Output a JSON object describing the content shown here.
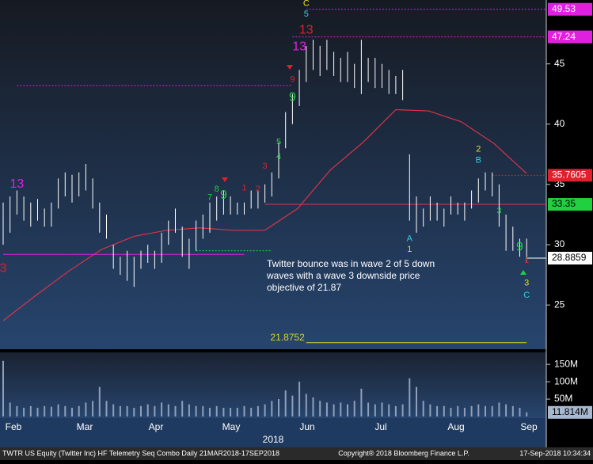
{
  "chart_data": [
    {
      "type": "hlbar",
      "high": [
        33.5,
        34.0,
        34.5,
        34.0,
        33.5,
        33.8,
        33.0,
        33.5,
        35.5,
        36.0,
        35.8,
        36.0,
        36.7,
        35.5,
        33.5,
        32.5,
        30.0,
        29.0,
        29.5,
        29.0,
        29.5,
        30.0,
        29.5,
        31.0,
        32.0,
        33.0,
        31.5,
        30.5,
        32.0,
        32.5,
        33.5,
        34.0,
        34.5,
        34.0,
        33.5,
        33.5,
        34.5,
        34.5,
        35.0,
        36.0,
        38.5,
        41.0,
        42.5,
        44.5,
        46.5,
        47.0,
        46.5,
        47.0,
        46.0,
        45.5,
        46.0,
        45.0,
        47.0,
        45.5,
        45.5,
        45.0,
        44.5,
        44.0,
        44.5,
        37.5,
        34.0,
        33.0,
        34.0,
        33.5,
        33.0,
        34.0,
        33.5,
        33.5,
        34.5,
        35.5,
        36.0,
        36.0,
        35.0,
        32.5,
        31.5,
        30.5,
        30.5
      ],
      "low": [
        30.0,
        31.0,
        32.5,
        32.0,
        31.5,
        32.0,
        31.5,
        31.5,
        33.0,
        34.0,
        33.5,
        34.0,
        34.5,
        33.0,
        31.0,
        30.5,
        28.0,
        27.5,
        27.0,
        26.5,
        28.0,
        28.5,
        28.0,
        28.5,
        30.0,
        31.0,
        29.0,
        28.0,
        29.5,
        30.5,
        31.0,
        32.0,
        32.5,
        32.5,
        32.5,
        32.5,
        33.0,
        33.0,
        33.5,
        34.0,
        35.5,
        38.0,
        40.0,
        41.5,
        43.5,
        44.5,
        44.0,
        44.5,
        44.0,
        43.5,
        43.5,
        43.0,
        42.5,
        43.5,
        43.0,
        43.0,
        42.5,
        42.5,
        42.0,
        32.0,
        31.0,
        31.5,
        32.0,
        32.0,
        31.5,
        32.5,
        32.5,
        32.0,
        33.0,
        33.5,
        34.5,
        34.0,
        31.5,
        29.5,
        29.5,
        29.0,
        28.5
      ],
      "color": "#ffffff",
      "ma": {
        "color": "#d8344a",
        "values": [
          23.7,
          25.8,
          27.8,
          29.6,
          30.7,
          31.2,
          31.4,
          31.2,
          31.2,
          33.0,
          36.2,
          38.5,
          41.2,
          41.1,
          40.2,
          38.4,
          35.9
        ]
      },
      "ylim": [
        21.4,
        50.3
      ],
      "yticks": [
        25,
        30,
        35,
        40,
        45
      ],
      "levels": [
        {
          "value": 49.53,
          "color": "#e020e0",
          "from": 44,
          "style": "dotted"
        },
        {
          "value": 47.24,
          "color": "#e020e0",
          "from": 42,
          "style": "dotted"
        },
        {
          "value": 35.7605,
          "color": "#e0202a",
          "from": 71,
          "style": "dotted"
        },
        {
          "value": 33.35,
          "color": "#20d040",
          "from": 38,
          "style": "solid",
          "line_color": "#d8344a"
        },
        {
          "value": 28.8859,
          "color": "#ffffff",
          "from": 76,
          "style": "solid"
        }
      ],
      "lines": [
        {
          "value": 43.2,
          "color": "#e020e0",
          "from": 2,
          "to": 42,
          "style": "dotted"
        },
        {
          "value": 29.2,
          "color": "#e020e0",
          "from": 0,
          "to": 35,
          "style": "solid"
        },
        {
          "value": 29.5,
          "color": "#20d040",
          "from": 28,
          "to": 39,
          "style": "dotted"
        }
      ],
      "target": {
        "value": 21.8752,
        "color": "#d8d820",
        "from": 44,
        "to": 76
      },
      "annotations": [
        {
          "text": "13",
          "color": "#e020e0",
          "i": 2,
          "price": 35.0,
          "size": 16
        },
        {
          "text": "3",
          "color": "#e0202a",
          "i": 0,
          "price": 28.0,
          "size": 16
        },
        {
          "text": "C",
          "color": "#e8e020",
          "i": 44,
          "price": 50.0,
          "size": 11
        },
        {
          "text": "5",
          "color": "#30d0e0",
          "i": 44,
          "price": 49.1,
          "size": 11
        },
        {
          "text": "13",
          "color": "#e020e0",
          "i": 43,
          "price": 46.4,
          "size": 16
        },
        {
          "text": "13",
          "color": "#e0202a",
          "i": 44,
          "price": 47.8,
          "size": 16
        },
        {
          "text": "9",
          "color": "#20d040",
          "i": 42,
          "price": 42.2,
          "size": 16
        },
        {
          "text": "9",
          "color": "#e0202a",
          "i": 42,
          "price": 43.7,
          "size": 11
        },
        {
          "text": "5",
          "color": "#20d040",
          "i": 40,
          "price": 38.5,
          "size": 11
        },
        {
          "text": "4",
          "color": "#20d040",
          "i": 40,
          "price": 37.3,
          "size": 11
        },
        {
          "text": "3",
          "color": "#e0202a",
          "i": 38,
          "price": 36.5,
          "size": 11
        },
        {
          "text": "2",
          "color": "#e0202a",
          "i": 37,
          "price": 34.6,
          "size": 11
        },
        {
          "text": "1",
          "color": "#e0202a",
          "i": 35,
          "price": 34.7,
          "size": 11
        },
        {
          "text": "9",
          "color": "#20d040",
          "i": 32,
          "price": 34.1,
          "size": 16
        },
        {
          "text": "8",
          "color": "#20d040",
          "i": 31,
          "price": 34.6,
          "size": 11
        },
        {
          "text": "7",
          "color": "#20d040",
          "i": 30,
          "price": 33.9,
          "size": 11
        },
        {
          "text": "A",
          "color": "#30d0e0",
          "i": 59,
          "price": 30.5,
          "size": 11
        },
        {
          "text": "1",
          "color": "#e8e020",
          "i": 59,
          "price": 29.6,
          "size": 11
        },
        {
          "text": "2",
          "color": "#e8e020",
          "i": 69,
          "price": 37.9,
          "size": 11
        },
        {
          "text": "B",
          "color": "#30d0e0",
          "i": 69,
          "price": 37.0,
          "size": 11
        },
        {
          "text": "3",
          "color": "#20d040",
          "i": 72,
          "price": 32.8,
          "size": 11
        },
        {
          "text": "9",
          "color": "#20d040",
          "i": 75,
          "price": 29.8,
          "size": 16
        },
        {
          "text": "1",
          "color": "#e0202a",
          "i": 76,
          "price": 28.7,
          "size": 11
        },
        {
          "text": "3",
          "color": "#e8e020",
          "i": 76,
          "price": 26.8,
          "size": 11
        },
        {
          "text": "C",
          "color": "#30d0e0",
          "i": 76,
          "price": 25.8,
          "size": 11
        }
      ],
      "note": [
        "Twitter bounce was in wave 2 of 5 down",
        "waves with a wave 3 downside price",
        "objective of 21.87"
      ],
      "months": [
        "Feb",
        "Mar",
        "Apr",
        "May",
        "Jun",
        "Jul",
        "Aug",
        "Sep"
      ],
      "year": "2018"
    },
    {
      "type": "bar",
      "values": [
        160,
        40,
        30,
        25,
        30,
        25,
        30,
        28,
        35,
        30,
        25,
        30,
        40,
        45,
        85,
        45,
        35,
        30,
        30,
        25,
        30,
        35,
        30,
        40,
        35,
        30,
        45,
        35,
        30,
        30,
        25,
        30,
        25,
        25,
        25,
        30,
        25,
        30,
        35,
        45,
        50,
        75,
        60,
        100,
        65,
        55,
        45,
        40,
        35,
        40,
        35,
        45,
        80,
        40,
        35,
        40,
        35,
        30,
        35,
        110,
        85,
        45,
        35,
        30,
        30,
        25,
        30,
        25,
        30,
        35,
        30,
        30,
        40,
        35,
        30,
        25,
        11.814
      ],
      "value_labels_last": "11.814M",
      "color": "#8fa0bc",
      "ylim": [
        0,
        180
      ],
      "yticks": [
        {
          "value": 50,
          "label": "50M"
        },
        {
          "value": 100,
          "label": "100M"
        },
        {
          "value": 150,
          "label": "150M"
        }
      ]
    }
  ],
  "footer": {
    "left": "TWTR US Equity (Twitter Inc) HF Telemetry Seq Combo  Daily 21MAR2018-17SEP2018",
    "center": "Copyright® 2018 Bloomberg Finance L.P.",
    "right": "17-Sep-2018 10:34:34"
  }
}
